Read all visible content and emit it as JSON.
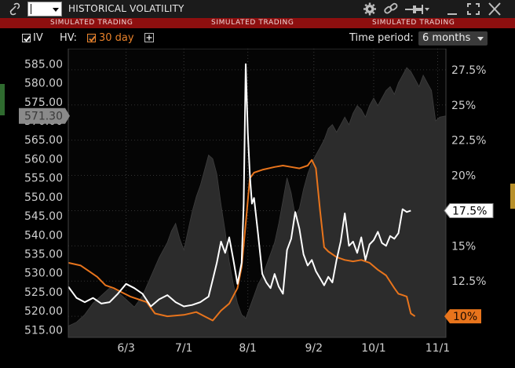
{
  "window": {
    "title": "HISTORICAL VOLATILITY",
    "symbol_value": ""
  },
  "banner": {
    "items": [
      "SIMULATED TRADING",
      "SIMULATED TRADING",
      "SIMULATED TRADING"
    ]
  },
  "controls": {
    "iv_label": "IV",
    "iv_checked": true,
    "hv_label": "HV:",
    "hv_checked": true,
    "hv_period_label": "30 day",
    "time_period_label": "Time period:",
    "time_period_value": "6 months"
  },
  "colors": {
    "iv": "#ffffff",
    "hv": "#e8741c",
    "price_area": "#2c2c2c",
    "banner": "#8e0f0f"
  },
  "chart_data": {
    "type": "line",
    "left_axis": {
      "ticks": [
        "515.00",
        "520.00",
        "525.00",
        "530.00",
        "535.00",
        "540.00",
        "545.00",
        "550.00",
        "555.00",
        "560.00",
        "565.00",
        "570.00",
        "575.00",
        "580.00",
        "585.00"
      ],
      "range": [
        513,
        589
      ]
    },
    "right_axis": {
      "ticks": [
        "10%",
        "12.5%",
        "15%",
        "17.5%",
        "20%",
        "22.5%",
        "25%",
        "27.5%"
      ],
      "range": [
        8.5,
        29
      ]
    },
    "x_ticks": [
      "6/3",
      "7/1",
      "8/1",
      "9/2",
      "10/1",
      "11/1"
    ],
    "x_range_days": [
      0,
      183
    ],
    "x_tick_days": [
      28,
      56,
      87,
      119,
      148,
      179
    ],
    "price_marker": "571.30",
    "iv_marker": "17.5%",
    "hv_marker": "10%",
    "series": [
      {
        "role": "price_area",
        "axis": "left",
        "points": [
          [
            0,
            516
          ],
          [
            4,
            517
          ],
          [
            8,
            519
          ],
          [
            12,
            522
          ],
          [
            16,
            524
          ],
          [
            20,
            526
          ],
          [
            24,
            525
          ],
          [
            28,
            523
          ],
          [
            32,
            521
          ],
          [
            36,
            524
          ],
          [
            40,
            529
          ],
          [
            44,
            534
          ],
          [
            48,
            538
          ],
          [
            50,
            541
          ],
          [
            52,
            543
          ],
          [
            54,
            539
          ],
          [
            56,
            536
          ],
          [
            58,
            541
          ],
          [
            60,
            546
          ],
          [
            62,
            550
          ],
          [
            64,
            553
          ],
          [
            66,
            557
          ],
          [
            68,
            561
          ],
          [
            70,
            560
          ],
          [
            72,
            556
          ],
          [
            74,
            548
          ],
          [
            76,
            541
          ],
          [
            78,
            533
          ],
          [
            80,
            527
          ],
          [
            82,
            522
          ],
          [
            84,
            519
          ],
          [
            86,
            518
          ],
          [
            88,
            521
          ],
          [
            90,
            524
          ],
          [
            92,
            527
          ],
          [
            94,
            529
          ],
          [
            96,
            532
          ],
          [
            98,
            535
          ],
          [
            100,
            538
          ],
          [
            102,
            543
          ],
          [
            104,
            549
          ],
          [
            106,
            555
          ],
          [
            108,
            551
          ],
          [
            110,
            545
          ],
          [
            112,
            547
          ],
          [
            114,
            552
          ],
          [
            116,
            556
          ],
          [
            118,
            559
          ],
          [
            120,
            561
          ],
          [
            122,
            563
          ],
          [
            124,
            565
          ],
          [
            126,
            568
          ],
          [
            128,
            569
          ],
          [
            130,
            567
          ],
          [
            132,
            569
          ],
          [
            134,
            571
          ],
          [
            136,
            569
          ],
          [
            138,
            572
          ],
          [
            140,
            574
          ],
          [
            142,
            573
          ],
          [
            144,
            571
          ],
          [
            146,
            574
          ],
          [
            148,
            576
          ],
          [
            150,
            574
          ],
          [
            152,
            576
          ],
          [
            154,
            578
          ],
          [
            156,
            579
          ],
          [
            158,
            577
          ],
          [
            160,
            580
          ],
          [
            162,
            582
          ],
          [
            164,
            584
          ],
          [
            166,
            583
          ],
          [
            168,
            581
          ],
          [
            170,
            579
          ],
          [
            172,
            582
          ],
          [
            174,
            580
          ],
          [
            176,
            578
          ],
          [
            178,
            570
          ],
          [
            180,
            571
          ],
          [
            183,
            571.3
          ]
        ]
      },
      {
        "role": "iv",
        "axis": "right",
        "points": [
          [
            0,
            12.1
          ],
          [
            4,
            11.3
          ],
          [
            8,
            11.0
          ],
          [
            12,
            11.3
          ],
          [
            16,
            10.9
          ],
          [
            20,
            11.0
          ],
          [
            24,
            11.6
          ],
          [
            28,
            12.3
          ],
          [
            32,
            12.0
          ],
          [
            36,
            11.6
          ],
          [
            40,
            10.7
          ],
          [
            44,
            11.2
          ],
          [
            48,
            11.5
          ],
          [
            52,
            11.0
          ],
          [
            56,
            10.7
          ],
          [
            60,
            10.8
          ],
          [
            64,
            11.0
          ],
          [
            68,
            11.4
          ],
          [
            70,
            12.6
          ],
          [
            72,
            13.8
          ],
          [
            74,
            15.3
          ],
          [
            76,
            14.5
          ],
          [
            78,
            15.6
          ],
          [
            80,
            14.0
          ],
          [
            82,
            12.3
          ],
          [
            84,
            13.8
          ],
          [
            85,
            18.0
          ],
          [
            86,
            27.9
          ],
          [
            87,
            23.0
          ],
          [
            88,
            20.0
          ],
          [
            89,
            18.0
          ],
          [
            90,
            18.4
          ],
          [
            92,
            15.8
          ],
          [
            94,
            13.0
          ],
          [
            96,
            12.4
          ],
          [
            98,
            12.0
          ],
          [
            100,
            13.0
          ],
          [
            102,
            12.1
          ],
          [
            104,
            11.6
          ],
          [
            106,
            14.7
          ],
          [
            108,
            15.5
          ],
          [
            110,
            17.4
          ],
          [
            112,
            16.2
          ],
          [
            114,
            14.4
          ],
          [
            116,
            13.6
          ],
          [
            118,
            14.0
          ],
          [
            120,
            13.2
          ],
          [
            122,
            12.7
          ],
          [
            124,
            12.2
          ],
          [
            126,
            12.8
          ],
          [
            128,
            12.4
          ],
          [
            130,
            14.0
          ],
          [
            132,
            15.3
          ],
          [
            134,
            17.3
          ],
          [
            136,
            15.0
          ],
          [
            138,
            15.3
          ],
          [
            140,
            14.5
          ],
          [
            142,
            15.6
          ],
          [
            144,
            14.0
          ],
          [
            146,
            15.1
          ],
          [
            148,
            15.4
          ],
          [
            150,
            16.0
          ],
          [
            152,
            15.2
          ],
          [
            154,
            15.0
          ],
          [
            156,
            15.7
          ],
          [
            158,
            15.5
          ],
          [
            160,
            15.9
          ],
          [
            162,
            17.6
          ],
          [
            164,
            17.4
          ],
          [
            166,
            17.5
          ]
        ]
      },
      {
        "role": "hv",
        "axis": "right",
        "points": [
          [
            0,
            13.8
          ],
          [
            6,
            13.6
          ],
          [
            10,
            13.2
          ],
          [
            14,
            12.8
          ],
          [
            18,
            12.2
          ],
          [
            22,
            12.0
          ],
          [
            26,
            11.7
          ],
          [
            30,
            11.4
          ],
          [
            34,
            11.2
          ],
          [
            38,
            11.0
          ],
          [
            42,
            10.2
          ],
          [
            48,
            10.0
          ],
          [
            56,
            10.1
          ],
          [
            62,
            10.3
          ],
          [
            66,
            10.0
          ],
          [
            70,
            9.7
          ],
          [
            74,
            10.4
          ],
          [
            78,
            10.9
          ],
          [
            82,
            12.0
          ],
          [
            84,
            13.5
          ],
          [
            86,
            16.6
          ],
          [
            88,
            19.8
          ],
          [
            90,
            20.2
          ],
          [
            94,
            20.4
          ],
          [
            100,
            20.6
          ],
          [
            104,
            20.7
          ],
          [
            108,
            20.6
          ],
          [
            112,
            20.5
          ],
          [
            116,
            20.7
          ],
          [
            118,
            21.1
          ],
          [
            120,
            20.5
          ],
          [
            122,
            17.5
          ],
          [
            124,
            14.9
          ],
          [
            126,
            14.6
          ],
          [
            130,
            14.2
          ],
          [
            134,
            14.0
          ],
          [
            138,
            13.9
          ],
          [
            142,
            14.0
          ],
          [
            146,
            13.8
          ],
          [
            150,
            13.3
          ],
          [
            154,
            12.9
          ],
          [
            158,
            12.0
          ],
          [
            160,
            11.6
          ],
          [
            162,
            11.5
          ],
          [
            164,
            11.4
          ],
          [
            166,
            10.2
          ],
          [
            168,
            10.0
          ]
        ]
      }
    ]
  }
}
